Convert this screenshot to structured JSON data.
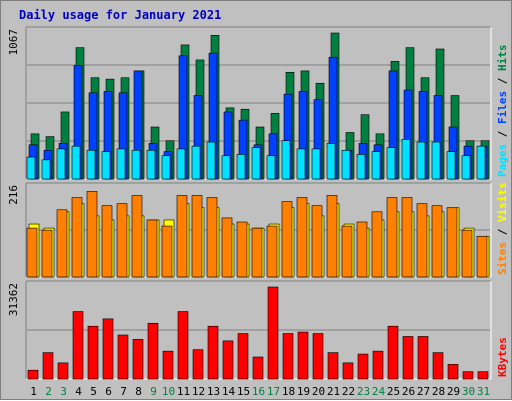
{
  "chart_data": {
    "type": "bar",
    "title": "Daily usage for January 2021",
    "categories": [
      "1",
      "2",
      "3",
      "4",
      "5",
      "6",
      "7",
      "8",
      "9",
      "10",
      "11",
      "12",
      "13",
      "14",
      "15",
      "16",
      "17",
      "18",
      "19",
      "20",
      "21",
      "22",
      "23",
      "24",
      "25",
      "26",
      "27",
      "28",
      "29",
      "30",
      "31"
    ],
    "weekend_days": [
      "2",
      "3",
      "9",
      "10",
      "16",
      "17",
      "23",
      "24",
      "30",
      "31"
    ],
    "panels": [
      {
        "label": "hits-files-pages",
        "ymax_label": "1067",
        "ymax": 1067,
        "legend": [
          {
            "text": "Pages",
            "color": "#00e0ff"
          },
          {
            "text": " / ",
            "color": "#000000"
          },
          {
            "text": "Files",
            "color": "#0040ff"
          },
          {
            "text": " / ",
            "color": "#000000"
          },
          {
            "text": "Hits",
            "color": "#008040"
          }
        ],
        "series": [
          {
            "name": "Hits",
            "color": "#008040",
            "values": [
              330,
              310,
              490,
              960,
              740,
              730,
              740,
              790,
              380,
              280,
              980,
              870,
              1050,
              520,
              510,
              380,
              480,
              780,
              790,
              700,
              1067,
              340,
              470,
              330,
              860,
              960,
              740,
              950,
              610,
              280,
              280
            ]
          },
          {
            "name": "Files",
            "color": "#0040ff",
            "values": [
              250,
              210,
              260,
              830,
              630,
              640,
              630,
              790,
              260,
              200,
              900,
              610,
              920,
              490,
              430,
              250,
              330,
              620,
              640,
              580,
              890,
              210,
              260,
              250,
              790,
              650,
              640,
              610,
              380,
              240,
              240
            ]
          },
          {
            "name": "Pages",
            "color": "#00e0ff",
            "values": [
              160,
              140,
              220,
              240,
              210,
              200,
              220,
              210,
              210,
              170,
              220,
              240,
              270,
              170,
              180,
              230,
              170,
              280,
              220,
              220,
              260,
              210,
              180,
              200,
              230,
              290,
              270,
              270,
              200,
              170,
              240
            ]
          }
        ]
      },
      {
        "label": "visits-sites",
        "ymax_label": "216",
        "ymax": 216,
        "legend": [
          {
            "text": "Sites",
            "color": "#ff8000"
          },
          {
            "text": " / ",
            "color": "#000000"
          },
          {
            "text": "Visits",
            "color": "#ffff00"
          }
        ],
        "series": [
          {
            "name": "Visits",
            "color": "#ffff00",
            "values": [
              130,
              120,
              160,
              180,
              150,
              140,
              150,
              150,
              140,
              140,
              180,
              170,
              170,
              130,
              130,
              120,
              130,
              170,
              180,
              150,
              180,
              130,
              120,
              140,
              160,
              160,
              150,
              160,
              170,
              120,
              100
            ]
          },
          {
            "name": "Sites",
            "color": "#ff8000",
            "values": [
              120,
              115,
              165,
              195,
              210,
              175,
              180,
              200,
              140,
              125,
              200,
              200,
              195,
              145,
              135,
              120,
              125,
              185,
              195,
              175,
              200,
              125,
              135,
              160,
              195,
              195,
              180,
              175,
              170,
              115,
              100
            ]
          }
        ]
      },
      {
        "label": "kbytes",
        "ymax_label": "31362",
        "ymax": 31362,
        "legend": [
          {
            "text": "KBytes",
            "color": "#ff0000"
          }
        ],
        "series": [
          {
            "name": "KBytes",
            "color": "#ff0000",
            "values": [
              3000,
              9000,
              5500,
              23000,
              18000,
              20500,
              15000,
              13500,
              19000,
              9500,
              23000,
              10000,
              18000,
              13000,
              15500,
              7500,
              31362,
              15500,
              16000,
              15500,
              9000,
              5500,
              8500,
              9500,
              18000,
              14500,
              14500,
              9000,
              5000,
              2500,
              2500
            ]
          }
        ]
      }
    ],
    "grid": true
  }
}
